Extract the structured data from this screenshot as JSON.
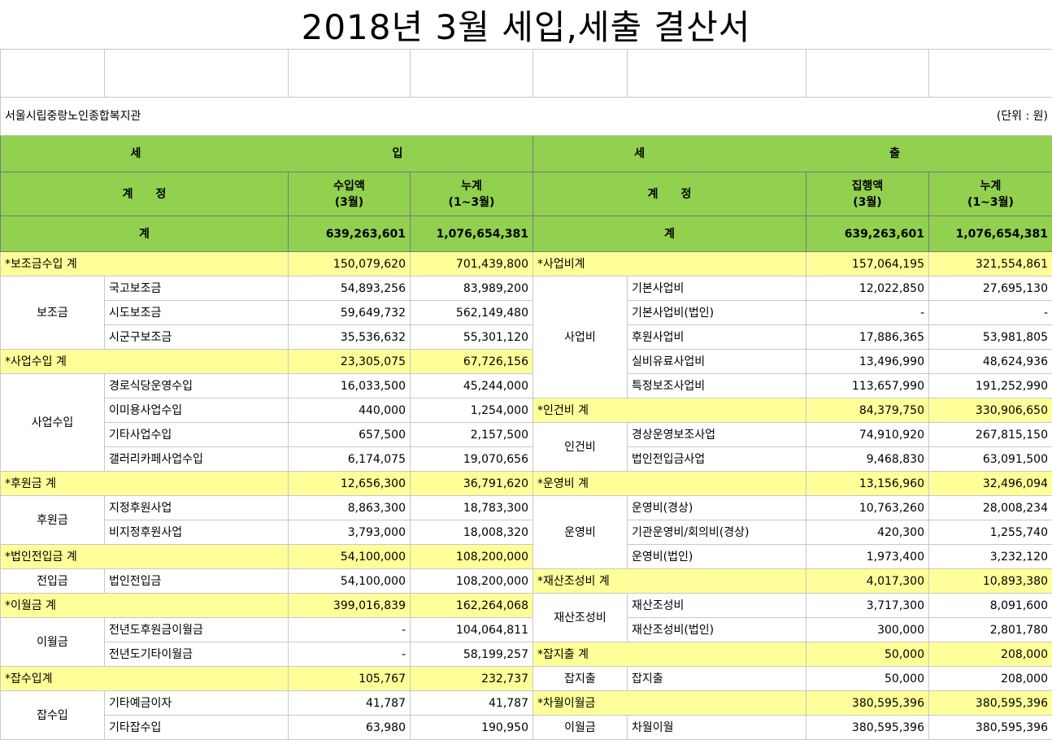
{
  "title": "2018년 3월 세입,세출 결산서",
  "org": "서울시립중랑노인종합복지관",
  "unit": "(단위 : 원)",
  "header": {
    "income_label": "세",
    "income_label2": "입",
    "expense_label": "세",
    "expense_label2": "출",
    "account": "계　　정",
    "income_amount_line1": "수입액",
    "income_amount_line2": "(3월)",
    "cumulative_line1": "누계",
    "cumulative_line2": "(1~3월)",
    "expense_amount_line1": "집행액",
    "expense_amount_line2": "(3월)"
  },
  "totals": {
    "label": "계",
    "income_month": "639,263,601",
    "income_cum": "1,076,654,381",
    "expense_month": "639,263,601",
    "expense_cum": "1,076,654,381"
  },
  "rows": [
    {
      "l": {
        "sec": "*보조금수입 계",
        "m": "150,079,620",
        "c": "701,439,800"
      },
      "r": {
        "sec": "*사업비계",
        "m": "157,064,195",
        "c": "321,554,861"
      }
    },
    {
      "l": {
        "group": "보조금",
        "item": "국고보조금",
        "m": "54,893,256",
        "c": "83,989,200"
      },
      "r": {
        "group": "사업비",
        "item": "기본사업비",
        "m": "12,022,850",
        "c": "27,695,130"
      }
    },
    {
      "l": {
        "item": "시도보조금",
        "m": "59,649,732",
        "c": "562,149,480"
      },
      "r": {
        "item": "기본사업비(법인)",
        "m": "-",
        "c": "-"
      }
    },
    {
      "l": {
        "item": "시군구보조금",
        "m": "35,536,632",
        "c": "55,301,120"
      },
      "r": {
        "item": "후원사업비",
        "m": "17,886,365",
        "c": "53,981,805"
      }
    },
    {
      "l": {
        "sec": "*사업수입 계",
        "m": "23,305,075",
        "c": "67,726,156"
      },
      "r": {
        "item": "실비유료사업비",
        "m": "13,496,990",
        "c": "48,624,936"
      }
    },
    {
      "l": {
        "group": "사업수입",
        "item": "경로식당운영수입",
        "m": "16,033,500",
        "c": "45,244,000"
      },
      "r": {
        "item": "특정보조사업비",
        "m": "113,657,990",
        "c": "191,252,990"
      }
    },
    {
      "l": {
        "item": "이미용사업수입",
        "m": "440,000",
        "c": "1,254,000"
      },
      "r": {
        "sec": "*인건비 계",
        "m": "84,379,750",
        "c": "330,906,650"
      }
    },
    {
      "l": {
        "item": "기타사업수입",
        "m": "657,500",
        "c": "2,157,500"
      },
      "r": {
        "group": "인건비",
        "item": "경상운영보조사업",
        "m": "74,910,920",
        "c": "267,815,150"
      }
    },
    {
      "l": {
        "item": "갤러리카페사업수입",
        "m": "6,174,075",
        "c": "19,070,656"
      },
      "r": {
        "item": "법인전입금사업",
        "m": "9,468,830",
        "c": "63,091,500"
      }
    },
    {
      "l": {
        "sec": "*후원금 계",
        "m": "12,656,300",
        "c": "36,791,620"
      },
      "r": {
        "sec": "*운영비 계",
        "m": "13,156,960",
        "c": "32,496,094"
      }
    },
    {
      "l": {
        "group": "후원금",
        "item": "지정후원사업",
        "m": "8,863,300",
        "c": "18,783,300"
      },
      "r": {
        "group": "운영비",
        "item": "운영비(경상)",
        "m": "10,763,260",
        "c": "28,008,234"
      }
    },
    {
      "l": {
        "item": "비지정후원사업",
        "m": "3,793,000",
        "c": "18,008,320"
      },
      "r": {
        "item": "기관운영비/회의비(경상)",
        "m": "420,300",
        "c": "1,255,740"
      }
    },
    {
      "l": {
        "sec": "*법인전입금 계",
        "m": "54,100,000",
        "c": "108,200,000"
      },
      "r": {
        "item": "운영비(법인)",
        "m": "1,973,400",
        "c": "3,232,120"
      }
    },
    {
      "l": {
        "group": "전입금",
        "item": "법인전입금",
        "m": "54,100,000",
        "c": "108,200,000"
      },
      "r": {
        "sec": "*재산조성비 계",
        "m": "4,017,300",
        "c": "10,893,380"
      }
    },
    {
      "l": {
        "sec": "*이월금 계",
        "m": "399,016,839",
        "c": "162,264,068"
      },
      "r": {
        "group": "재산조성비",
        "item": "재산조성비",
        "m": "3,717,300",
        "c": "8,091,600"
      }
    },
    {
      "l": {
        "group": "이월금",
        "item": "전년도후원금이월금",
        "m": "-",
        "c": "104,064,811"
      },
      "r": {
        "item": "재산조성비(법인)",
        "m": "300,000",
        "c": "2,801,780"
      }
    },
    {
      "l": {
        "item": "전년도기타이월금",
        "m": "-",
        "c": "58,199,257"
      },
      "r": {
        "sec": "*잡지출 계",
        "m": "50,000",
        "c": "208,000"
      }
    },
    {
      "l": {
        "sec": "*잡수입계",
        "m": "105,767",
        "c": "232,737"
      },
      "r": {
        "group": "잡지출",
        "item": "잡지출",
        "m": "50,000",
        "c": "208,000"
      }
    },
    {
      "l": {
        "group": "잡수입",
        "item": "기타예금이자",
        "m": "41,787",
        "c": "41,787"
      },
      "r": {
        "sec": "*차월이월금",
        "m": "380,595,396",
        "c": "380,595,396"
      }
    },
    {
      "l": {
        "item": "기타잡수입",
        "m": "63,980",
        "c": "190,950"
      },
      "r": {
        "group": "이월금",
        "item": "차월이월",
        "m": "380,595,396",
        "c": "380,595,396"
      }
    }
  ],
  "colors": {
    "header_green": "#92d050",
    "section_yellow": "#ffff99"
  }
}
